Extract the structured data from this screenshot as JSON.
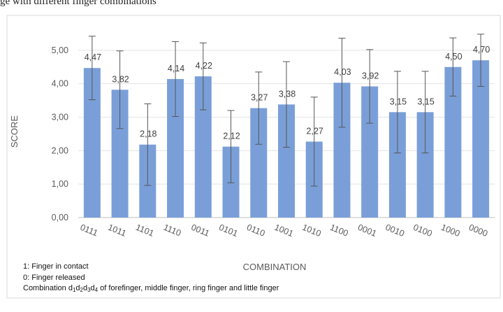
{
  "top_caption": "ge with different finger combinations",
  "chart_data": {
    "type": "bar",
    "title": "",
    "xlabel": "COMBINATION",
    "ylabel": "SCORE",
    "ylim": [
      0,
      6
    ],
    "yticks": [
      "0,00",
      "1,00",
      "2,00",
      "3,00",
      "4,00",
      "5,00"
    ],
    "grid": true,
    "categories": [
      "0111",
      "1011",
      "1101",
      "1110",
      "0011",
      "0101",
      "0110",
      "1001",
      "1010",
      "1100",
      "0001",
      "0010",
      "0100",
      "1000",
      "0000"
    ],
    "values": [
      4.47,
      3.82,
      2.18,
      4.14,
      4.22,
      2.12,
      3.27,
      3.38,
      2.27,
      4.03,
      3.92,
      3.15,
      3.15,
      4.5,
      4.7
    ],
    "value_labels": [
      "4,47",
      "3,82",
      "2,18",
      "4,14",
      "4,22",
      "2,12",
      "3,27",
      "3,38",
      "2,27",
      "4,03",
      "3,92",
      "3,15",
      "3,15",
      "4,50",
      "4,70"
    ],
    "error_bars": [
      0.95,
      1.16,
      1.22,
      1.12,
      1.0,
      1.08,
      1.08,
      1.28,
      1.33,
      1.33,
      1.1,
      1.22,
      1.22,
      0.87,
      0.78
    ],
    "bar_color": "#7a9fd8",
    "error_color": "#555555"
  },
  "footnotes": {
    "line1": "1: Finger in contact",
    "line2": "0: Finger released",
    "line3_prefix": "Combination d",
    "line3_suffix": " of forefinger, middle finger, ring finger and little finger",
    "subscripts": [
      "1",
      "2",
      "3",
      "4"
    ],
    "d": "d"
  }
}
